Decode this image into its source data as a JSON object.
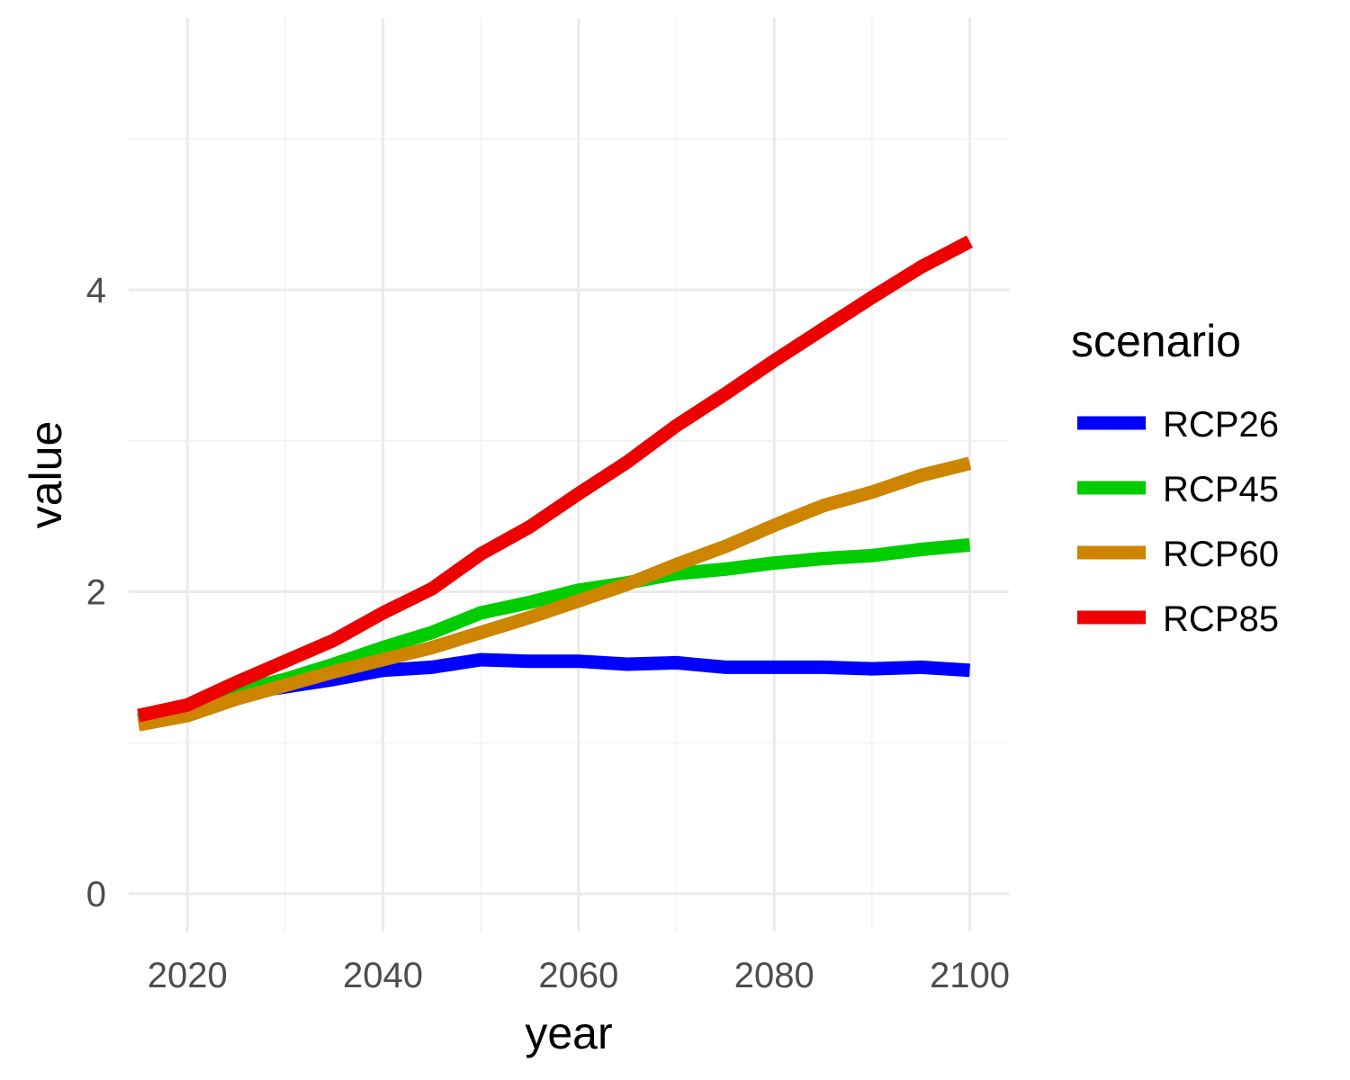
{
  "chart_data": {
    "type": "line",
    "xlabel": "year",
    "ylabel": "value",
    "xlim": [
      2014,
      2104
    ],
    "ylim": [
      -0.25,
      5.8
    ],
    "x_ticks": [
      2020,
      2040,
      2060,
      2080,
      2100
    ],
    "y_ticks": [
      0,
      2,
      4
    ],
    "x_tick_labels": [
      "2020",
      "2040",
      "2060",
      "2080",
      "2100"
    ],
    "y_tick_labels": [
      "0",
      "2",
      "4"
    ],
    "grid": true,
    "legend": {
      "title": "scenario",
      "position": "right"
    },
    "x": [
      2015,
      2020,
      2025,
      2030,
      2035,
      2040,
      2045,
      2050,
      2055,
      2060,
      2065,
      2070,
      2075,
      2080,
      2085,
      2090,
      2095,
      2100
    ],
    "series": [
      {
        "name": "RCP26",
        "color": "#0000ff",
        "values": [
          1.15,
          1.22,
          1.32,
          1.37,
          1.42,
          1.48,
          1.5,
          1.55,
          1.54,
          1.54,
          1.52,
          1.53,
          1.5,
          1.5,
          1.5,
          1.49,
          1.5,
          1.48
        ]
      },
      {
        "name": "RCP45",
        "color": "#00cd00",
        "values": [
          1.15,
          1.22,
          1.34,
          1.42,
          1.52,
          1.63,
          1.73,
          1.86,
          1.93,
          2.01,
          2.06,
          2.12,
          2.15,
          2.19,
          2.22,
          2.24,
          2.28,
          2.31
        ]
      },
      {
        "name": "RCP60",
        "color": "#cd8500",
        "values": [
          1.12,
          1.18,
          1.29,
          1.38,
          1.47,
          1.55,
          1.63,
          1.73,
          1.83,
          1.94,
          2.05,
          2.18,
          2.3,
          2.44,
          2.57,
          2.66,
          2.77,
          2.85
        ]
      },
      {
        "name": "RCP85",
        "color": "#ee0000",
        "values": [
          1.18,
          1.25,
          1.4,
          1.54,
          1.68,
          1.86,
          2.02,
          2.25,
          2.43,
          2.65,
          2.86,
          3.1,
          3.31,
          3.53,
          3.74,
          3.95,
          4.15,
          4.32
        ]
      }
    ]
  }
}
